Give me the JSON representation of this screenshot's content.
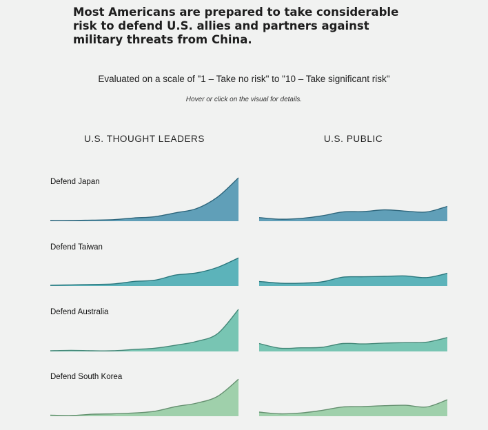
{
  "title": "Most Americans are prepared to take considerable risk to defend U.S. allies and partners against military threats from China.",
  "subtitle": "Evaluated on a scale of \"1 – Take no risk\" to \"10 – Take significant risk\"",
  "hint": "Hover or click on the visual for details.",
  "columns": [
    "U.S. THOUGHT LEADERS",
    "U.S. PUBLIC"
  ],
  "rows": [
    {
      "label": "Defend Japan",
      "color": "#3f8cab"
    },
    {
      "label": "Defend Taiwan",
      "color": "#3aa5ad"
    },
    {
      "label": "Defend Australia",
      "color": "#5dbba5"
    },
    {
      "label": "Defend South Korea",
      "color": "#8cc89b"
    }
  ],
  "chart_data": {
    "type": "area",
    "x": [
      1,
      2,
      3,
      4,
      5,
      6,
      7,
      8,
      9,
      10
    ],
    "ylim": [
      0,
      1
    ],
    "series": [
      {
        "row": "Defend Japan",
        "column": "U.S. THOUGHT LEADERS",
        "values": [
          0.0,
          0.0,
          0.01,
          0.02,
          0.06,
          0.09,
          0.18,
          0.28,
          0.55,
          1.0
        ]
      },
      {
        "row": "Defend Japan",
        "column": "U.S. PUBLIC",
        "values": [
          0.07,
          0.03,
          0.05,
          0.11,
          0.2,
          0.21,
          0.25,
          0.22,
          0.2,
          0.33
        ]
      },
      {
        "row": "Defend Taiwan",
        "column": "U.S. THOUGHT LEADERS",
        "values": [
          0.0,
          0.01,
          0.02,
          0.03,
          0.09,
          0.12,
          0.24,
          0.29,
          0.42,
          0.64
        ]
      },
      {
        "row": "Defend Taiwan",
        "column": "U.S. PUBLIC",
        "values": [
          0.09,
          0.05,
          0.05,
          0.08,
          0.19,
          0.2,
          0.21,
          0.22,
          0.18,
          0.28
        ]
      },
      {
        "row": "Defend Australia",
        "column": "U.S. THOUGHT LEADERS",
        "values": [
          0.0,
          0.01,
          0.0,
          0.0,
          0.03,
          0.06,
          0.13,
          0.22,
          0.4,
          0.97
        ]
      },
      {
        "row": "Defend Australia",
        "column": "U.S. PUBLIC",
        "values": [
          0.17,
          0.06,
          0.07,
          0.08,
          0.17,
          0.16,
          0.18,
          0.19,
          0.2,
          0.31
        ]
      },
      {
        "row": "Defend South Korea",
        "column": "U.S. THOUGHT LEADERS",
        "values": [
          0.01,
          0.0,
          0.03,
          0.04,
          0.06,
          0.1,
          0.21,
          0.29,
          0.45,
          0.85
        ]
      },
      {
        "row": "Defend South Korea",
        "column": "U.S. PUBLIC",
        "values": [
          0.08,
          0.04,
          0.06,
          0.12,
          0.2,
          0.21,
          0.23,
          0.24,
          0.2,
          0.37
        ]
      }
    ]
  }
}
